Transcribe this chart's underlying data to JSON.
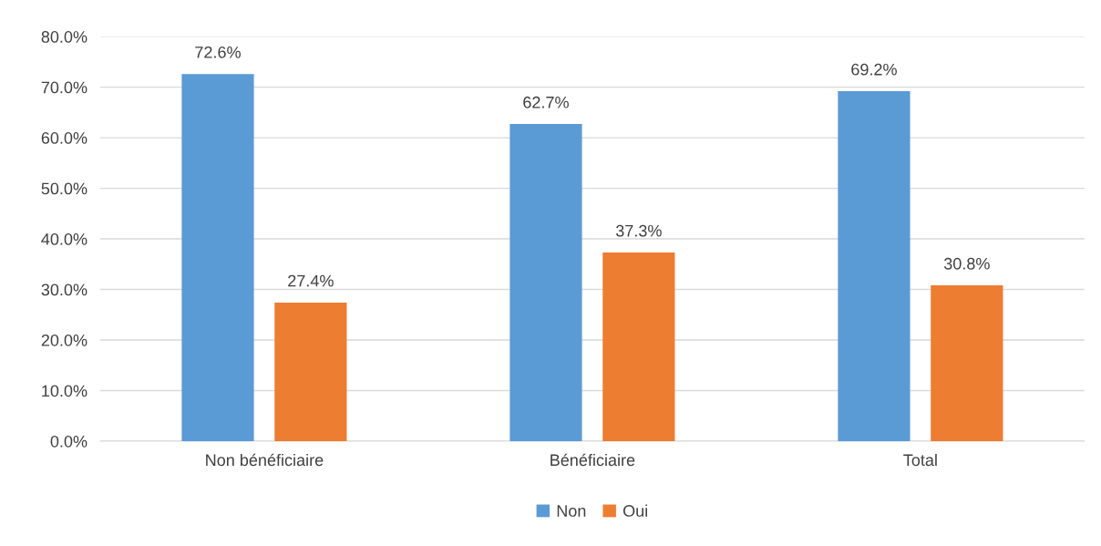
{
  "chart_data": {
    "type": "bar",
    "categories": [
      "Non bénéficiaire",
      "Bénéficiaire",
      "Total"
    ],
    "series": [
      {
        "name": "Non",
        "color": "#5b9bd5",
        "values": [
          72.6,
          62.7,
          69.2
        ],
        "value_labels": [
          "72.6%",
          "62.7%",
          "69.2%"
        ]
      },
      {
        "name": "Oui",
        "color": "#ed7d31",
        "values": [
          27.4,
          37.3,
          30.8
        ],
        "value_labels": [
          "27.4%",
          "37.3%",
          "30.8%"
        ]
      }
    ],
    "ylim": [
      0,
      80
    ],
    "yticks": [
      {
        "value": 0,
        "label": "0.0%"
      },
      {
        "value": 10,
        "label": "10.0%"
      },
      {
        "value": 20,
        "label": "20.0%"
      },
      {
        "value": 30,
        "label": "30.0%"
      },
      {
        "value": 40,
        "label": "40.0%"
      },
      {
        "value": 50,
        "label": "50.0%"
      },
      {
        "value": 60,
        "label": "60.0%"
      },
      {
        "value": 70,
        "label": "70.0%"
      },
      {
        "value": 80,
        "label": "80.0%"
      }
    ],
    "grid": "y",
    "legend": "bottom"
  }
}
